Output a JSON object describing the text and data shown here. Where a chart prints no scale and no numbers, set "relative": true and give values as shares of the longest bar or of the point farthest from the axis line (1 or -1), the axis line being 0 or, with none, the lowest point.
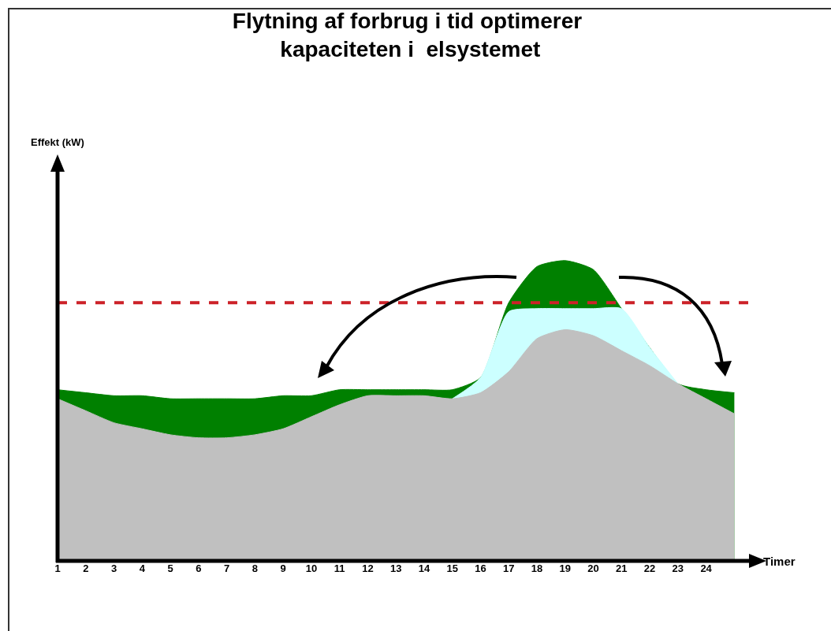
{
  "chart_data": {
    "type": "area",
    "relative": true,
    "title": "Flytning af forbrug i tid optimerer\n kapaciteten i  elsystemet",
    "xlabel": "Timer",
    "annotations": [
      "Effekt (kW)"
    ],
    "x": [
      1,
      2,
      3,
      4,
      5,
      6,
      7,
      8,
      9,
      10,
      11,
      12,
      13,
      14,
      15,
      16,
      17,
      18,
      19,
      20,
      21,
      22,
      23,
      24,
      25
    ],
    "xlim": [
      1,
      25.8
    ],
    "xticks": [
      1,
      2,
      3,
      4,
      5,
      6,
      7,
      8,
      9,
      10,
      11,
      12,
      13,
      14,
      15,
      16,
      17,
      18,
      19,
      20,
      21,
      22,
      23,
      24
    ],
    "grid": false,
    "series": [
      {
        "color": "#008000",
        "values": [
          0.57,
          0.56,
          0.55,
          0.55,
          0.54,
          0.54,
          0.54,
          0.54,
          0.55,
          0.55,
          0.57,
          0.57,
          0.57,
          0.57,
          0.57,
          0.61,
          0.86,
          0.98,
          1,
          0.97,
          0.84,
          0.71,
          0.59,
          0.57,
          0.56
        ]
      },
      {
        "color": "#ccffff",
        "x": [
          15,
          16,
          17,
          18,
          19,
          20,
          21,
          22,
          23
        ],
        "values": [
          0.54,
          0.61,
          0.83,
          0.84,
          0.84,
          0.84,
          0.84,
          0.71,
          0.59
        ]
      },
      {
        "color": "#c0c0c0",
        "values": [
          0.54,
          0.5,
          0.46,
          0.44,
          0.42,
          0.41,
          0.41,
          0.42,
          0.44,
          0.48,
          0.52,
          0.55,
          0.55,
          0.55,
          0.54,
          0.56,
          0.63,
          0.74,
          0.77,
          0.75,
          0.7,
          0.65,
          0.59,
          0.54,
          0.49
        ]
      }
    ],
    "ref_lines": [
      {
        "axis": "y",
        "value": 0.86,
        "color": "#cc2229",
        "line_style": "dashed"
      }
    ]
  }
}
